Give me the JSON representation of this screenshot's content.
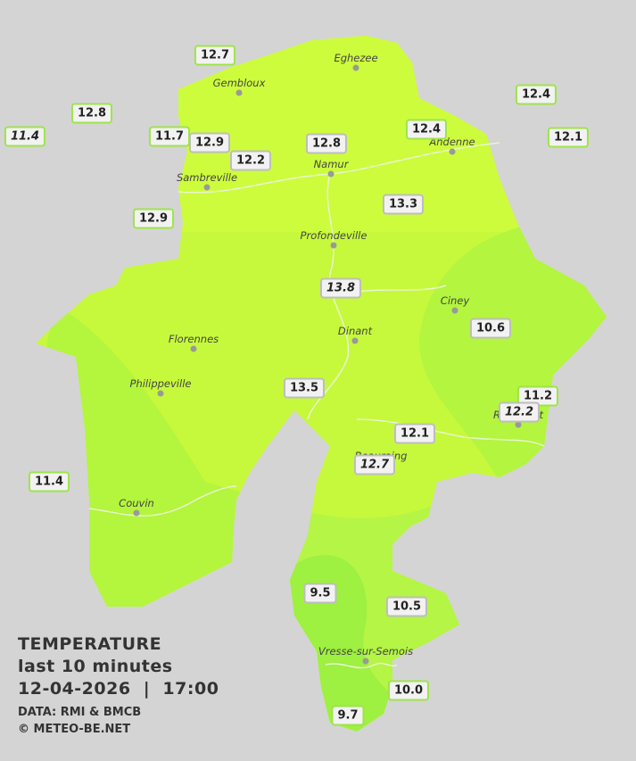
{
  "legend": {
    "heading": "TEMPERATURE",
    "subtitle": "last 10 minutes",
    "datetime": "12-04-2026  |  17:00",
    "source": "DATA: RMI & BMCB",
    "credit": "© METEO-BE.NET"
  },
  "cities": [
    "Eghezee",
    "Gembloux",
    "Andenne",
    "Namur",
    "Sambreville",
    "Profondeville",
    "Ciney",
    "Dinant",
    "Florennes",
    "Philippeville",
    "Rochefort",
    "Beauraing",
    "Couvin",
    "Vresse-sur-Semois"
  ],
  "readings": [
    "12.7",
    "12.8",
    "11.4",
    "11.7",
    "12.9",
    "12.2",
    "12.8",
    "12.4",
    "12.4",
    "12.1",
    "12.9",
    "13.3",
    "13.8",
    "10.6",
    "13.5",
    "11.2",
    "12.2",
    "12.1",
    "12.7",
    "11.4",
    "9.5",
    "10.5",
    "10.0",
    "9.7"
  ]
}
